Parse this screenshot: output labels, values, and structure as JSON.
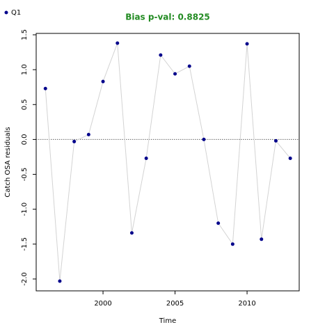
{
  "chart_data": {
    "type": "line",
    "title": "Bias p-val: 0.8825",
    "title_color": "#228b22",
    "x_label": "Time",
    "y_label": "Catch OSA residuals",
    "x": [
      1996,
      1997,
      1998,
      1999,
      2000,
      2001,
      2002,
      2003,
      2004,
      2005,
      2006,
      2007,
      2008,
      2009,
      2010,
      2011,
      2012,
      2013
    ],
    "series": [
      {
        "name": "Q1",
        "color": "#00008b",
        "line_color": "#d3d3d3",
        "values": [
          0.73,
          -2.03,
          -0.03,
          0.07,
          0.83,
          1.38,
          -1.34,
          -0.27,
          1.21,
          0.94,
          1.05,
          0.0,
          -1.2,
          -1.5,
          1.37,
          -1.43,
          -0.02,
          -0.27
        ]
      }
    ],
    "xlim": [
      1995.36,
      2013.62
    ],
    "ylim": [
      -2.17,
      1.52
    ],
    "xticks": [
      2000,
      2005,
      2010
    ],
    "yticks": [
      1.5,
      {
        "value": 1,
        "label": "1.0"
      },
      0.5,
      {
        "value": 0,
        "label": "0.0"
      },
      -0.5,
      {
        "value": -1,
        "label": "-1.0"
      },
      -1.5,
      {
        "value": -2,
        "label": "-2.0"
      }
    ],
    "hline": 0,
    "legend": "top-left"
  }
}
